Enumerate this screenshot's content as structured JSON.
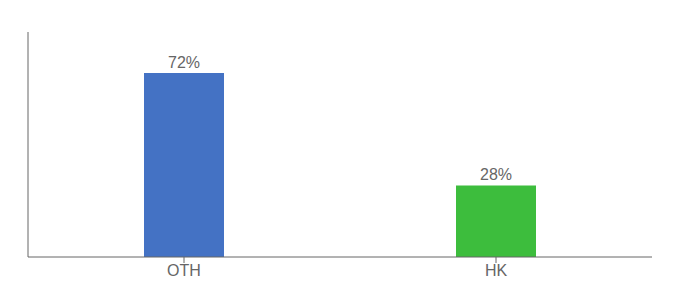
{
  "chart_data": {
    "type": "bar",
    "categories": [
      "OTH",
      "HK"
    ],
    "values": [
      72,
      28
    ],
    "value_labels": [
      "72%",
      "28%"
    ],
    "colors": [
      "#4472C4",
      "#3DBD3D"
    ],
    "ylim": [
      0,
      88
    ],
    "grid": false,
    "data_labels": true,
    "tick_labels": "x"
  }
}
